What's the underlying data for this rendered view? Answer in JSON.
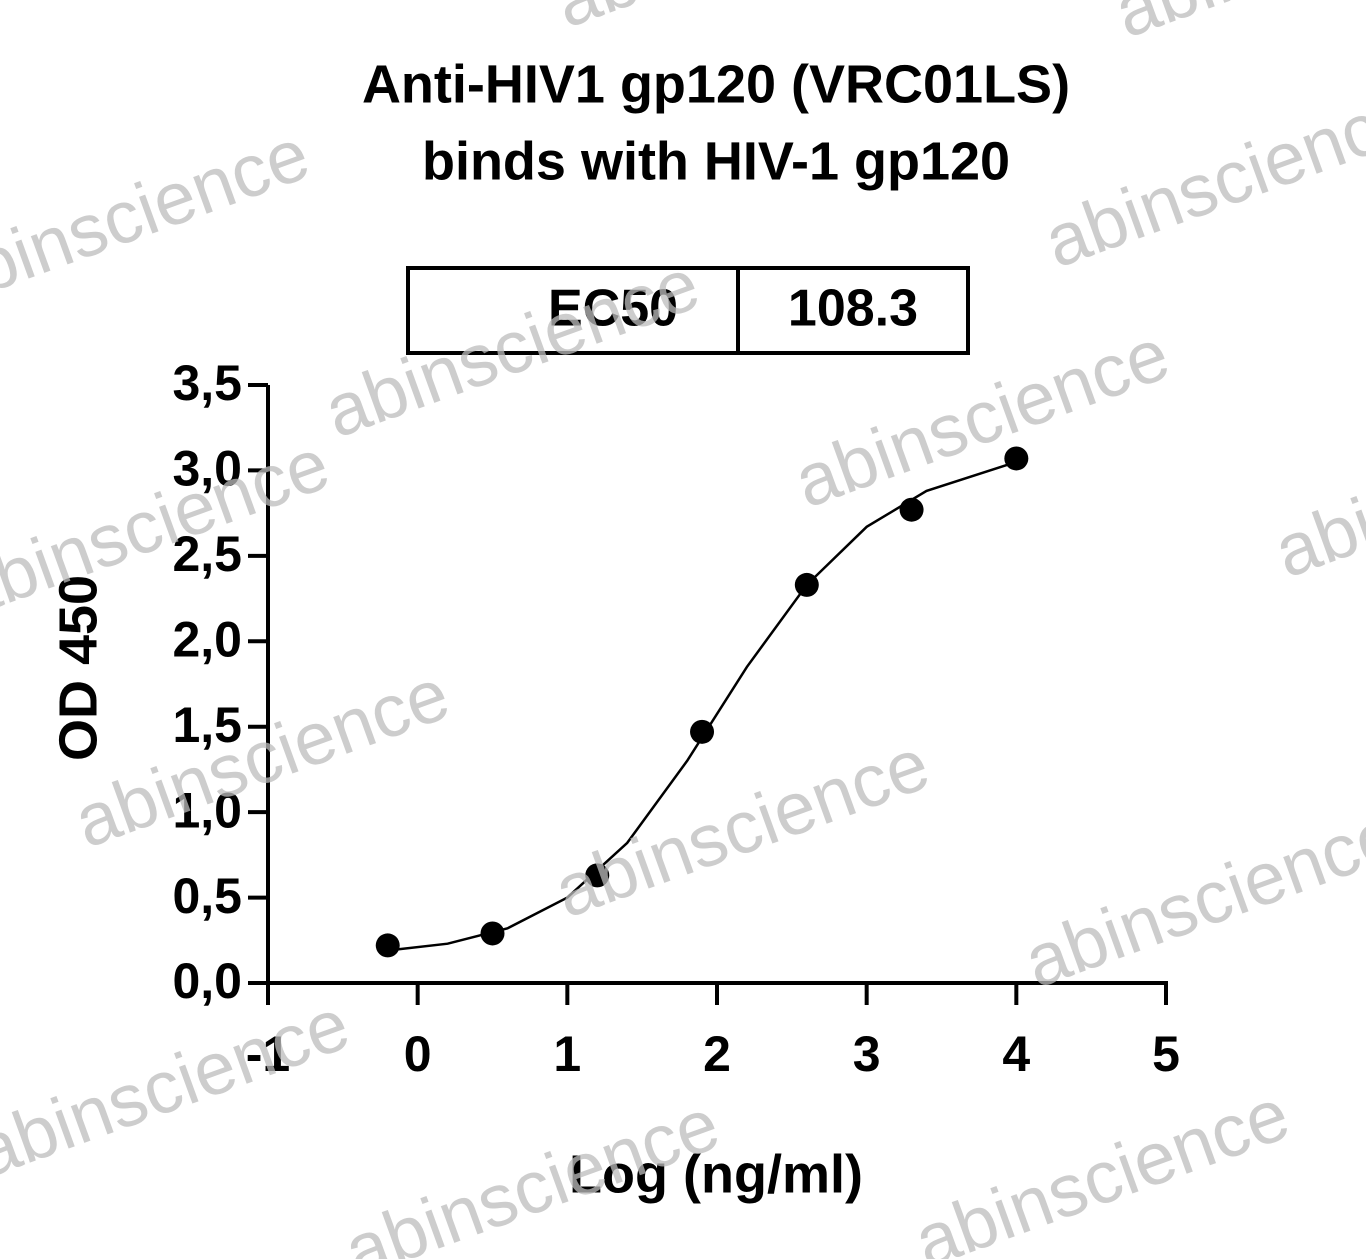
{
  "chart_data": {
    "type": "scatter",
    "title": [
      "Anti-HIV1 gp120 (VRC01LS)",
      "binds with HIV-1 gp120"
    ],
    "x_label": "Log (ng/ml)",
    "y_label": "OD 450",
    "table": {
      "label": "EC50",
      "value": 108.3
    },
    "watermark": "abinscience",
    "xlim": [
      -1,
      5
    ],
    "xticks": [
      -1,
      0,
      1,
      2,
      3,
      4,
      5
    ],
    "ylim": [
      0,
      3.5
    ],
    "yticks": [
      {
        "value": 0,
        "label": "0,0"
      },
      {
        "value": 0.5,
        "label": "0,5"
      },
      {
        "value": 1,
        "label": "1,0"
      },
      {
        "value": 1.5,
        "label": "1,5"
      },
      {
        "value": 2,
        "label": "2,0"
      },
      {
        "value": 2.5,
        "label": "2,5"
      },
      {
        "value": 3,
        "label": "3,0"
      },
      {
        "value": 3.5,
        "label": "3,5"
      }
    ],
    "color": "#000000",
    "x": [
      -0.2,
      0.5,
      1.2,
      1.9,
      2.6,
      3.3,
      4.0
    ],
    "values": [
      0.22,
      0.29,
      0.63,
      1.47,
      2.33,
      2.77,
      3.07
    ],
    "curve": {
      "x": [
        -0.2,
        0.2,
        0.6,
        1.0,
        1.4,
        1.8,
        2.2,
        2.6,
        3.0,
        3.4,
        4.0
      ],
      "y": [
        0.19,
        0.23,
        0.32,
        0.5,
        0.82,
        1.3,
        1.85,
        2.33,
        2.67,
        2.88,
        3.05
      ]
    }
  }
}
